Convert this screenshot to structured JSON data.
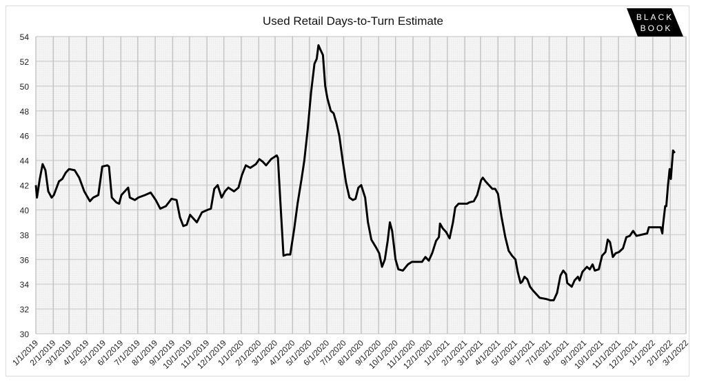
{
  "logo": {
    "text": "BLACK BOOK",
    "line1": "BLACK",
    "line2": "BOOK"
  },
  "chart_data": {
    "type": "line",
    "title": "Used Retail Days-to-Turn Estimate",
    "xlabel": "",
    "ylabel": "",
    "ylim": [
      30,
      54
    ],
    "xlim": [
      "2019-01-01",
      "2022-03-01"
    ],
    "grid": true,
    "line_color": "#000000",
    "yticks": [
      30,
      32,
      34,
      36,
      38,
      40,
      42,
      44,
      46,
      48,
      50,
      52,
      54
    ],
    "xticks": [
      "1/1/2019",
      "2/1/2019",
      "3/1/2019",
      "4/1/2019",
      "5/1/2019",
      "6/1/2019",
      "7/1/2019",
      "8/1/2019",
      "9/1/2019",
      "10/1/2019",
      "11/1/2019",
      "12/1/2019",
      "1/1/2020",
      "2/1/2020",
      "3/1/2020",
      "4/1/2020",
      "5/1/2020",
      "6/1/2020",
      "7/1/2020",
      "8/1/2020",
      "9/1/2020",
      "10/1/2020",
      "11/1/2020",
      "12/1/2020",
      "1/1/2021",
      "2/1/2021",
      "3/1/2021",
      "4/1/2021",
      "5/1/2021",
      "6/1/2021",
      "7/1/2021",
      "8/1/2021",
      "9/1/2021",
      "10/1/2021",
      "11/1/2021",
      "12/1/2021",
      "1/1/2022",
      "2/1/2022",
      "3/1/2022"
    ],
    "series": [
      {
        "points": [
          [
            "2019-01-01",
            42.0
          ],
          [
            "2019-01-03",
            41.0
          ],
          [
            "2019-01-08",
            42.5
          ],
          [
            "2019-01-13",
            43.7
          ],
          [
            "2019-01-18",
            43.2
          ],
          [
            "2019-01-23",
            41.5
          ],
          [
            "2019-01-29",
            41.0
          ],
          [
            "2019-02-02",
            41.2
          ],
          [
            "2019-02-11",
            42.3
          ],
          [
            "2019-02-17",
            42.5
          ],
          [
            "2019-02-23",
            43.0
          ],
          [
            "2019-03-01",
            43.3
          ],
          [
            "2019-03-11",
            43.2
          ],
          [
            "2019-03-19",
            42.6
          ],
          [
            "2019-03-28",
            41.5
          ],
          [
            "2019-04-07",
            40.7
          ],
          [
            "2019-04-13",
            41.0
          ],
          [
            "2019-04-22",
            41.2
          ],
          [
            "2019-04-29",
            43.5
          ],
          [
            "2019-05-08",
            43.6
          ],
          [
            "2019-05-11",
            43.5
          ],
          [
            "2019-05-16",
            41.0
          ],
          [
            "2019-05-24",
            40.6
          ],
          [
            "2019-05-29",
            40.5
          ],
          [
            "2019-06-02",
            41.2
          ],
          [
            "2019-06-14",
            41.8
          ],
          [
            "2019-06-17",
            41.0
          ],
          [
            "2019-06-26",
            40.8
          ],
          [
            "2019-07-02",
            41.0
          ],
          [
            "2019-07-14",
            41.2
          ],
          [
            "2019-07-24",
            41.4
          ],
          [
            "2019-08-02",
            40.8
          ],
          [
            "2019-08-10",
            40.1
          ],
          [
            "2019-08-20",
            40.3
          ],
          [
            "2019-08-30",
            40.9
          ],
          [
            "2019-09-08",
            40.8
          ],
          [
            "2019-09-14",
            39.4
          ],
          [
            "2019-09-20",
            38.7
          ],
          [
            "2019-09-26",
            38.8
          ],
          [
            "2019-10-02",
            39.6
          ],
          [
            "2019-10-08",
            39.3
          ],
          [
            "2019-10-14",
            39.0
          ],
          [
            "2019-10-23",
            39.8
          ],
          [
            "2019-11-02",
            40.0
          ],
          [
            "2019-11-08",
            40.1
          ],
          [
            "2019-11-14",
            41.7
          ],
          [
            "2019-11-20",
            42.0
          ],
          [
            "2019-11-27",
            41.0
          ],
          [
            "2019-12-03",
            41.5
          ],
          [
            "2019-12-09",
            41.8
          ],
          [
            "2019-12-19",
            41.5
          ],
          [
            "2019-12-27",
            41.8
          ],
          [
            "2020-01-02",
            42.8
          ],
          [
            "2020-01-09",
            43.6
          ],
          [
            "2020-01-17",
            43.4
          ],
          [
            "2020-01-27",
            43.7
          ],
          [
            "2020-02-02",
            44.1
          ],
          [
            "2020-02-08",
            43.9
          ],
          [
            "2020-02-14",
            43.6
          ],
          [
            "2020-02-23",
            44.1
          ],
          [
            "2020-03-04",
            44.4
          ],
          [
            "2020-03-06",
            44.2
          ],
          [
            "2020-03-10",
            41.0
          ],
          [
            "2020-03-16",
            36.3
          ],
          [
            "2020-03-22",
            36.4
          ],
          [
            "2020-03-28",
            36.4
          ],
          [
            "2020-04-04",
            38.5
          ],
          [
            "2020-04-10",
            40.5
          ],
          [
            "2020-04-17",
            42.5
          ],
          [
            "2020-04-22",
            44.0
          ],
          [
            "2020-04-28",
            46.5
          ],
          [
            "2020-05-04",
            49.5
          ],
          [
            "2020-05-10",
            51.8
          ],
          [
            "2020-05-14",
            52.2
          ],
          [
            "2020-05-17",
            53.3
          ],
          [
            "2020-05-20",
            53.0
          ],
          [
            "2020-05-25",
            52.5
          ],
          [
            "2020-05-29",
            50.0
          ],
          [
            "2020-06-02",
            49.0
          ],
          [
            "2020-06-08",
            48.0
          ],
          [
            "2020-06-13",
            47.8
          ],
          [
            "2020-06-18",
            47.0
          ],
          [
            "2020-06-23",
            46.0
          ],
          [
            "2020-06-29",
            44.0
          ],
          [
            "2020-07-05",
            42.2
          ],
          [
            "2020-07-11",
            41.0
          ],
          [
            "2020-07-17",
            40.8
          ],
          [
            "2020-07-22",
            40.9
          ],
          [
            "2020-07-27",
            41.8
          ],
          [
            "2020-08-01",
            42.0
          ],
          [
            "2020-08-08",
            41.0
          ],
          [
            "2020-08-13",
            39.0
          ],
          [
            "2020-08-19",
            37.6
          ],
          [
            "2020-08-27",
            37.0
          ],
          [
            "2020-09-02",
            36.5
          ],
          [
            "2020-09-07",
            35.4
          ],
          [
            "2020-09-12",
            36.0
          ],
          [
            "2020-09-17",
            37.5
          ],
          [
            "2020-09-21",
            39.0
          ],
          [
            "2020-09-25",
            38.3
          ],
          [
            "2020-10-01",
            36.0
          ],
          [
            "2020-10-06",
            35.2
          ],
          [
            "2020-10-14",
            35.1
          ],
          [
            "2020-10-23",
            35.6
          ],
          [
            "2020-10-30",
            35.8
          ],
          [
            "2020-11-17",
            35.8
          ],
          [
            "2020-11-23",
            36.2
          ],
          [
            "2020-11-29",
            35.9
          ],
          [
            "2020-12-05",
            36.5
          ],
          [
            "2020-12-12",
            37.5
          ],
          [
            "2020-12-17",
            37.8
          ],
          [
            "2020-12-19",
            38.9
          ],
          [
            "2020-12-24",
            38.5
          ],
          [
            "2020-12-30",
            38.2
          ],
          [
            "2021-01-05",
            37.7
          ],
          [
            "2021-01-11",
            39.0
          ],
          [
            "2021-01-15",
            40.2
          ],
          [
            "2021-01-21",
            40.5
          ],
          [
            "2021-02-05",
            40.5
          ],
          [
            "2021-02-09",
            40.6
          ],
          [
            "2021-02-17",
            40.7
          ],
          [
            "2021-02-23",
            41.2
          ],
          [
            "2021-03-02",
            42.4
          ],
          [
            "2021-03-05",
            42.6
          ],
          [
            "2021-03-10",
            42.3
          ],
          [
            "2021-03-16",
            42.0
          ],
          [
            "2021-03-22",
            41.7
          ],
          [
            "2021-03-27",
            41.7
          ],
          [
            "2021-04-01",
            41.3
          ],
          [
            "2021-04-07",
            39.5
          ],
          [
            "2021-04-14",
            37.8
          ],
          [
            "2021-04-20",
            36.7
          ],
          [
            "2021-04-26",
            36.3
          ],
          [
            "2021-05-02",
            36.0
          ],
          [
            "2021-05-06",
            35.0
          ],
          [
            "2021-05-11",
            34.1
          ],
          [
            "2021-05-14",
            34.2
          ],
          [
            "2021-05-18",
            34.6
          ],
          [
            "2021-05-23",
            34.4
          ],
          [
            "2021-05-28",
            33.8
          ],
          [
            "2021-06-02",
            33.5
          ],
          [
            "2021-06-08",
            33.2
          ],
          [
            "2021-06-14",
            32.9
          ],
          [
            "2021-06-26",
            32.8
          ],
          [
            "2021-07-03",
            32.7
          ],
          [
            "2021-07-09",
            32.7
          ],
          [
            "2021-07-15",
            33.3
          ],
          [
            "2021-07-21",
            34.7
          ],
          [
            "2021-07-26",
            35.1
          ],
          [
            "2021-07-31",
            34.8
          ],
          [
            "2021-08-02",
            34.1
          ],
          [
            "2021-08-10",
            33.8
          ],
          [
            "2021-08-15",
            34.3
          ],
          [
            "2021-08-21",
            34.6
          ],
          [
            "2021-08-24",
            34.3
          ],
          [
            "2021-08-29",
            35.0
          ],
          [
            "2021-09-06",
            35.4
          ],
          [
            "2021-09-11",
            35.2
          ],
          [
            "2021-09-16",
            35.6
          ],
          [
            "2021-09-20",
            35.1
          ],
          [
            "2021-09-27",
            35.2
          ],
          [
            "2021-10-03",
            36.3
          ],
          [
            "2021-10-09",
            36.6
          ],
          [
            "2021-10-13",
            37.6
          ],
          [
            "2021-10-17",
            37.4
          ],
          [
            "2021-10-22",
            36.2
          ],
          [
            "2021-10-27",
            36.5
          ],
          [
            "2021-11-02",
            36.6
          ],
          [
            "2021-11-09",
            36.9
          ],
          [
            "2021-11-15",
            37.8
          ],
          [
            "2021-11-21",
            37.9
          ],
          [
            "2021-11-27",
            38.3
          ],
          [
            "2021-12-03",
            37.9
          ],
          [
            "2021-12-22",
            38.1
          ],
          [
            "2021-12-25",
            38.6
          ],
          [
            "2022-01-15",
            38.6
          ],
          [
            "2022-01-18",
            38.1
          ],
          [
            "2022-01-19",
            38.7
          ],
          [
            "2022-01-23",
            40.3
          ],
          [
            "2022-01-25",
            40.3
          ],
          [
            "2022-01-28",
            42.0
          ],
          [
            "2022-01-31",
            43.3
          ],
          [
            "2022-02-02",
            42.5
          ],
          [
            "2022-02-06",
            44.8
          ],
          [
            "2022-02-09",
            44.6
          ]
        ]
      }
    ]
  }
}
